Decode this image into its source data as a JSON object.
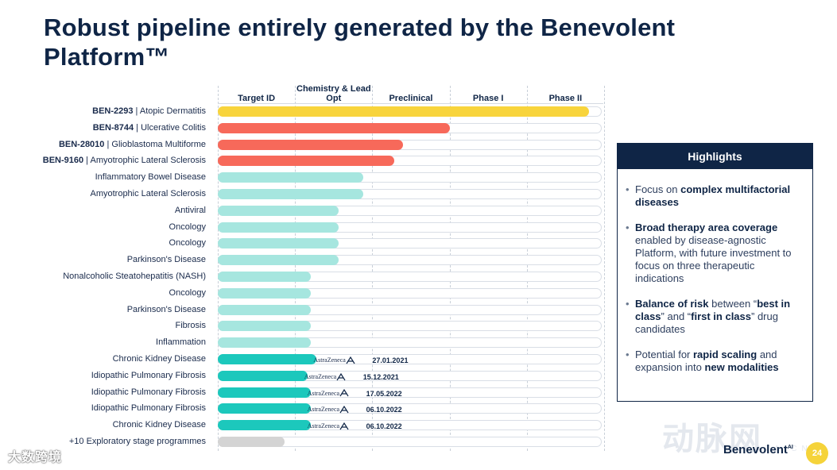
{
  "title": "Robust pipeline entirely generated by the Benevolent Platform™",
  "stages": [
    "Target ID",
    "Chemistry & Lead Opt",
    "Preclinical",
    "Phase I",
    "Phase II"
  ],
  "colors": {
    "yellow": "#f8d43c",
    "coral": "#f7695a",
    "mint": "#a6e6df",
    "teal": "#1cc8bc",
    "gray": "#d4d4d4",
    "navy": "#0f2546"
  },
  "rows": [
    {
      "code": "BEN-2293",
      "sep": " | ",
      "disease": "Atopic Dermatitis",
      "progress": 4.8,
      "color": "yellow"
    },
    {
      "code": "BEN-8744",
      "sep": " |  ",
      "disease": "Ulcerative Colitis",
      "progress": 3.0,
      "color": "coral"
    },
    {
      "code": "BEN-28010",
      "sep": " | ",
      "disease": "Glioblastoma Multiforme",
      "progress": 2.4,
      "color": "coral"
    },
    {
      "code": "BEN-9160",
      "sep": " | ",
      "disease": "Amyotrophic Lateral Sclerosis",
      "progress": 2.28,
      "color": "coral"
    },
    {
      "code": "",
      "sep": "",
      "disease": "Inflammatory Bowel Disease",
      "progress": 1.88,
      "color": "mint"
    },
    {
      "code": "",
      "sep": "",
      "disease": "Amyotrophic Lateral Sclerosis",
      "progress": 1.88,
      "color": "mint"
    },
    {
      "code": "",
      "sep": "",
      "disease": "Antiviral",
      "progress": 1.56,
      "color": "mint"
    },
    {
      "code": "",
      "sep": "",
      "disease": "Oncology",
      "progress": 1.56,
      "color": "mint"
    },
    {
      "code": "",
      "sep": "",
      "disease": "Oncology",
      "progress": 1.56,
      "color": "mint"
    },
    {
      "code": "",
      "sep": "",
      "disease": "Parkinson's Disease",
      "progress": 1.56,
      "color": "mint"
    },
    {
      "code": "",
      "sep": "",
      "disease": "Nonalcoholic Steatohepatitis (NASH)",
      "progress": 1.2,
      "color": "mint"
    },
    {
      "code": "",
      "sep": "",
      "disease": "Oncology",
      "progress": 1.2,
      "color": "mint"
    },
    {
      "code": "",
      "sep": "",
      "disease": "Parkinson's Disease",
      "progress": 1.2,
      "color": "mint"
    },
    {
      "code": "",
      "sep": "",
      "disease": "Fibrosis",
      "progress": 1.2,
      "color": "mint"
    },
    {
      "code": "",
      "sep": "",
      "disease": "Inflammation",
      "progress": 1.2,
      "color": "mint"
    },
    {
      "code": "",
      "sep": "",
      "disease": "Chronic Kidney Disease",
      "progress": 1.28,
      "color": "teal",
      "partner": "AstraZeneca",
      "date": "27.01.2021"
    },
    {
      "code": "",
      "sep": "",
      "disease": "Idiopathic Pulmonary Fibrosis",
      "progress": 1.16,
      "color": "teal",
      "partner": "AstraZeneca",
      "date": "15.12.2021"
    },
    {
      "code": "",
      "sep": "",
      "disease": "Idiopathic Pulmonary Fibrosis",
      "progress": 1.2,
      "color": "teal",
      "partner": "AstraZeneca",
      "date": "17.05.2022"
    },
    {
      "code": "",
      "sep": "",
      "disease": "Idiopathic Pulmonary Fibrosis",
      "progress": 1.2,
      "color": "teal",
      "partner": "AstraZeneca",
      "date": "06.10.2022"
    },
    {
      "code": "",
      "sep": "",
      "disease": "Chronic Kidney Disease",
      "progress": 1.2,
      "color": "teal",
      "partner": "AstraZeneca",
      "date": "06.10.2022"
    },
    {
      "code": "",
      "sep": "",
      "disease": "+10 Exploratory stage programmes",
      "progress": 0.86,
      "color": "gray"
    }
  ],
  "highlights": {
    "heading": "Highlights",
    "items": [
      [
        {
          "t": "Focus on ",
          "b": false
        },
        {
          "t": "complex multifactorial diseases",
          "b": true
        }
      ],
      [
        {
          "t": "Broad therapy area coverage",
          "b": true
        },
        {
          "t": " enabled by disease-agnostic Platform, with future investment to focus on three therapeutic indications",
          "b": false
        }
      ],
      [
        {
          "t": "Balance of risk",
          "b": true
        },
        {
          "t": " between “",
          "b": false
        },
        {
          "t": "best in class",
          "b": true
        },
        {
          "t": "” and “",
          "b": false
        },
        {
          "t": "first in class",
          "b": true
        },
        {
          "t": "” drug candidates",
          "b": false
        }
      ],
      [
        {
          "t": "Potential for ",
          "b": false
        },
        {
          "t": "rapid scaling",
          "b": true
        },
        {
          "t": " and expansion into ",
          "b": false
        },
        {
          "t": "new modalities",
          "b": true
        }
      ]
    ]
  },
  "brand": {
    "name": "Benevolent",
    "sup": "AI",
    "badge": "24"
  },
  "watermarks": {
    "left": "大数跨境",
    "right": "动脉网",
    "right_sub": "VBDATA.CN"
  }
}
